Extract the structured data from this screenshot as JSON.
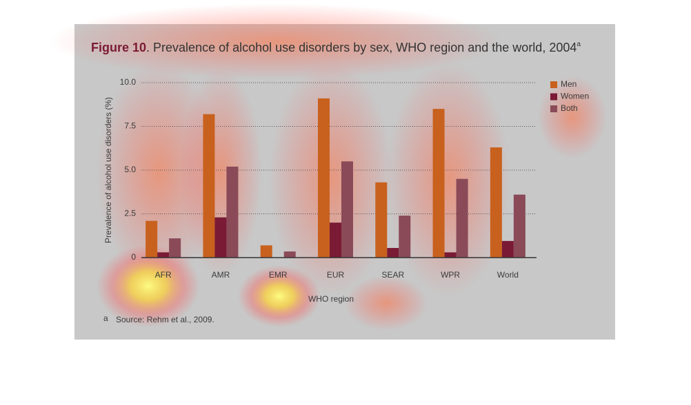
{
  "chart_data": {
    "type": "bar",
    "title_label": "Figure 10",
    "title": ". Prevalence of alcohol use disorders by sex, WHO region and the world, 2004",
    "title_superscript": "a",
    "x_label": "WHO region",
    "y_label": "Prevalence of alcohol use disorders (%)",
    "categories": [
      "AFR",
      "AMR",
      "EMR",
      "EUR",
      "SEAR",
      "WPR",
      "World"
    ],
    "series": [
      {
        "name": "Men",
        "color": "#c8611e",
        "values": [
          2.1,
          8.2,
          0.7,
          9.1,
          4.3,
          8.5,
          6.3
        ]
      },
      {
        "name": "Women",
        "color": "#7a1a35",
        "values": [
          0.3,
          2.3,
          0,
          2.0,
          0.55,
          0.3,
          0.95
        ]
      },
      {
        "name": "Both",
        "color": "#8a4a58",
        "values": [
          1.1,
          5.2,
          0.35,
          5.5,
          2.4,
          4.5,
          3.6
        ]
      }
    ],
    "ylim": [
      0,
      10
    ],
    "yticks": [
      0,
      2.5,
      {
        "value": 5,
        "label": "5.0"
      },
      7.5,
      {
        "value": 10,
        "label": "10.0"
      }
    ],
    "grid": true,
    "legend": "right",
    "footnote_marker": "a",
    "footnote": "Source: Rehm et al., 2009."
  }
}
